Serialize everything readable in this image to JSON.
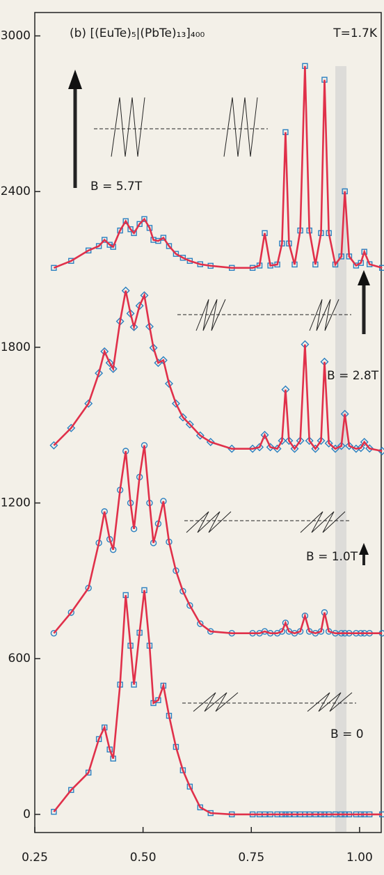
{
  "chart_data": {
    "type": "line",
    "title": "(b) [(EuTe)₅|(PbTe)₁₃]₄₀₀",
    "subtitle": "T=1.7K",
    "x": [
      0.294,
      0.334,
      0.374,
      0.398,
      0.411,
      0.423,
      0.431,
      0.447,
      0.46,
      0.471,
      0.479,
      0.492,
      0.503,
      0.515,
      0.524,
      0.535,
      0.547,
      0.56,
      0.576,
      0.592,
      0.608,
      0.632,
      0.656,
      0.705,
      0.753,
      0.769,
      0.781,
      0.794,
      0.81,
      0.821,
      0.829,
      0.837,
      0.85,
      0.863,
      0.874,
      0.884,
      0.898,
      0.911,
      0.919,
      0.929,
      0.944,
      0.958,
      0.966,
      0.976,
      0.992,
      1.003,
      1.011,
      1.023,
      1.052
    ],
    "series": [
      {
        "name": "B = 5.7T",
        "marker": "square",
        "values": [
          2106,
          2133,
          2173,
          2190,
          2214,
          2195,
          2187,
          2250,
          2286,
          2255,
          2240,
          2275,
          2294,
          2260,
          2214,
          2210,
          2222,
          2190,
          2160,
          2145,
          2133,
          2120,
          2114,
          2106,
          2106,
          2115,
          2240,
          2115,
          2119,
          2200,
          2629,
          2200,
          2119,
          2250,
          2884,
          2250,
          2119,
          2240,
          2831,
          2240,
          2119,
          2150,
          2401,
          2150,
          2115,
          2125,
          2168,
          2120,
          2106
        ]
      },
      {
        "name": "B = 2.8T",
        "marker": "diamond",
        "values": [
          1422,
          1489,
          1583,
          1700,
          1784,
          1740,
          1717,
          1900,
          2018,
          1930,
          1878,
          1960,
          2000,
          1880,
          1798,
          1740,
          1750,
          1660,
          1583,
          1530,
          1503,
          1460,
          1435,
          1409,
          1409,
          1415,
          1462,
          1415,
          1409,
          1440,
          1637,
          1440,
          1409,
          1440,
          1811,
          1440,
          1409,
          1440,
          1744,
          1430,
          1409,
          1420,
          1543,
          1420,
          1409,
          1412,
          1435,
          1410,
          1400
        ]
      },
      {
        "name": "B = 1.0T",
        "marker": "circle",
        "values": [
          698,
          778,
          872,
          1046,
          1167,
          1060,
          1020,
          1250,
          1400,
          1200,
          1100,
          1300,
          1422,
          1200,
          1046,
          1120,
          1207,
          1050,
          939,
          860,
          805,
          735,
          705,
          698,
          698,
          698,
          705,
          698,
          698,
          705,
          738,
          705,
          698,
          705,
          765,
          705,
          698,
          705,
          778,
          705,
          698,
          698,
          698,
          698,
          698,
          698,
          698,
          698,
          698
        ]
      },
      {
        "name": "B = 0",
        "marker": "square",
        "values": [
          10,
          94,
          161,
          290,
          335,
          250,
          215,
          500,
          845,
          650,
          500,
          700,
          864,
          650,
          429,
          440,
          496,
          380,
          260,
          170,
          107,
          27,
          5,
          0,
          0,
          0,
          0,
          0,
          0,
          0,
          0,
          0,
          0,
          0,
          0,
          0,
          0,
          0,
          0,
          0,
          0,
          0,
          0,
          0,
          0,
          0,
          0,
          0,
          0
        ]
      }
    ],
    "line_color": "#e0304a",
    "marker_color": "#2a7fc0",
    "xlim": [
      0.25,
      1.05
    ],
    "ylim": [
      -70,
      3090
    ],
    "xticks": [
      {
        "value": 0.25,
        "label": "0.25"
      },
      {
        "value": 0.5,
        "label": "0.50"
      },
      {
        "value": 0.75,
        "label": "0.75"
      },
      {
        "value": 1,
        "label": "1.00"
      }
    ],
    "yticks": [
      0,
      600,
      1200,
      1800,
      2400,
      3000
    ]
  }
}
